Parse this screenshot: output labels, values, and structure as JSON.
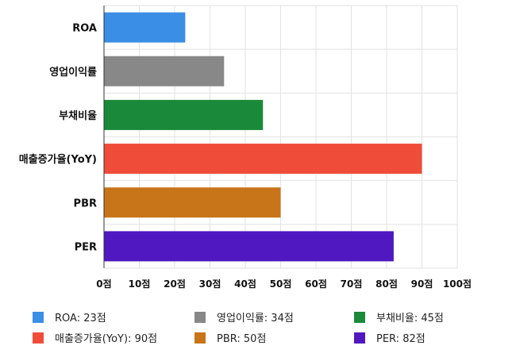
{
  "chart_data": {
    "type": "bar",
    "orientation": "horizontal",
    "title": "",
    "xlabel": "",
    "ylabel": "",
    "categories": [
      "ROA",
      "영업이익률",
      "부채비율",
      "매출증가율(YoY)",
      "PBR",
      "PER"
    ],
    "values": [
      23,
      34,
      45,
      90,
      50,
      82
    ],
    "colors": [
      "#3a8ee6",
      "#888888",
      "#1a8a3a",
      "#ef4d3a",
      "#c87418",
      "#4f18c0"
    ],
    "xlim": [
      0,
      100
    ],
    "x_ticks": [
      0,
      10,
      20,
      30,
      40,
      50,
      60,
      70,
      80,
      90,
      100
    ],
    "x_tick_labels": [
      "0점",
      "10점",
      "20점",
      "30점",
      "40점",
      "50점",
      "60점",
      "70점",
      "80점",
      "90점",
      "100점"
    ],
    "grid": true,
    "legend_position": "bottom",
    "legend": [
      {
        "label": "ROA: 23점",
        "color": "#3a8ee6"
      },
      {
        "label": "영업이익률: 34점",
        "color": "#888888"
      },
      {
        "label": "부채비율: 45점",
        "color": "#1a8a3a"
      },
      {
        "label": "매출증가율(YoY): 90점",
        "color": "#ef4d3a"
      },
      {
        "label": "PBR: 50점",
        "color": "#c87418"
      },
      {
        "label": "PER: 82점",
        "color": "#4f18c0"
      }
    ]
  }
}
